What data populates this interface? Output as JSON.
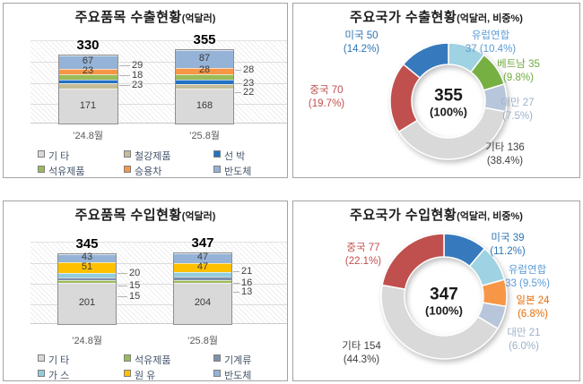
{
  "chart_data": [
    {
      "id": "export-items",
      "type": "bar",
      "stacked": true,
      "title": "주요품목 수출현황",
      "unit": "(억달러)",
      "categories": [
        "’24.8월",
        "’25.8월"
      ],
      "totals": [
        "330",
        "355"
      ],
      "ymax": 400,
      "grid": true,
      "legend_position": "bottom",
      "series": [
        {
          "name": "기 타",
          "color": "#d9d9d9",
          "values": [
            171,
            168
          ],
          "labels": "inside"
        },
        {
          "name": "철강제품",
          "color": "#c5bd97",
          "values": [
            23,
            22
          ],
          "labels": "callout"
        },
        {
          "name": "선 박",
          "color": "#2271c3",
          "values": [
            18,
            23
          ],
          "labels": "callout"
        },
        {
          "name": "석유제품",
          "color": "#9bbb59",
          "values": [
            29,
            28
          ],
          "labels": "callout"
        },
        {
          "name": "승용차",
          "color": "#f79646",
          "values": [
            23,
            28
          ],
          "labels": "inside"
        },
        {
          "name": "반도체",
          "color": "#95b3d7",
          "values": [
            67,
            87
          ],
          "labels": "inside"
        }
      ]
    },
    {
      "id": "export-countries",
      "type": "donut",
      "title": "주요국가 수출현황",
      "unit": "(억달러, 비중%)",
      "center": {
        "value": "355",
        "share": "(100%)"
      },
      "slices": [
        {
          "name": "유럽연합",
          "value": 37,
          "share": "10.4%",
          "color": "#9fd2e2",
          "label_color": "#5b9bd5",
          "label_lines": [
            "유럽연합",
            "37 (10.4%)"
          ]
        },
        {
          "name": "베트남",
          "value": 35,
          "share": "9.8%",
          "color": "#76b043",
          "label_color": "#6faa3d",
          "label_lines": [
            "베트남 35",
            "(9.8%)"
          ]
        },
        {
          "name": "대만",
          "value": 27,
          "share": "7.5%",
          "color": "#b7c6da",
          "label_color": "#9fb0c9",
          "label_lines": [
            "대만 27",
            "(7.5%)"
          ]
        },
        {
          "name": "기타",
          "value": 136,
          "share": "38.4%",
          "color": "#d9d9d9",
          "label_color": "#404040",
          "label_lines": [
            "기타 136",
            "(38.4%)"
          ]
        },
        {
          "name": "중국",
          "value": 70,
          "share": "19.7%",
          "color": "#c0504d",
          "label_color": "#c0504d",
          "label_lines": [
            "중국 70",
            "(19.7%)"
          ]
        },
        {
          "name": "미국",
          "value": 50,
          "share": "14.2%",
          "color": "#3779bd",
          "label_color": "#2e75b6",
          "label_lines": [
            "미국 50",
            "(14.2%)"
          ]
        }
      ]
    },
    {
      "id": "import-items",
      "type": "bar",
      "stacked": true,
      "title": "주요품목 수입현황",
      "unit": "(억달러)",
      "categories": [
        "’24.8월",
        "’25.8월"
      ],
      "totals": [
        "345",
        "347"
      ],
      "ymax": 400,
      "grid": true,
      "legend_position": "bottom",
      "series": [
        {
          "name": "기 타",
          "color": "#d9d9d9",
          "values": [
            201,
            204
          ],
          "labels": "inside"
        },
        {
          "name": "석유제품",
          "color": "#9bbb59",
          "values": [
            15,
            13
          ],
          "labels": "callout"
        },
        {
          "name": "기계류",
          "color": "#7d91ad",
          "values": [
            15,
            16
          ],
          "labels": "callout"
        },
        {
          "name": "가 스",
          "color": "#92cddc",
          "values": [
            20,
            21
          ],
          "labels": "callout"
        },
        {
          "name": "원 유",
          "color": "#ffc000",
          "values": [
            51,
            47
          ],
          "labels": "inside"
        },
        {
          "name": "반도체",
          "color": "#95b3d7",
          "values": [
            43,
            47
          ],
          "labels": "inside"
        }
      ]
    },
    {
      "id": "import-countries",
      "type": "donut",
      "title": "주요국가 수입현황",
      "unit": "(억달러, 비중%)",
      "center": {
        "value": "347",
        "share": "(100%)"
      },
      "slices": [
        {
          "name": "미국",
          "value": 39,
          "share": "11.2%",
          "color": "#3779bd",
          "label_color": "#2e75b6",
          "label_lines": [
            "미국 39",
            "(11.2%)"
          ]
        },
        {
          "name": "유럽연합",
          "value": 33,
          "share": "9.5%",
          "color": "#9fd2e2",
          "label_color": "#5b9bd5",
          "label_lines": [
            "유럽연합",
            "33 (9.5%)"
          ]
        },
        {
          "name": "일본",
          "value": 24,
          "share": "6.8%",
          "color": "#f79646",
          "label_color": "#e36c09",
          "label_lines": [
            "일본 24",
            "(6.8%)"
          ]
        },
        {
          "name": "대만",
          "value": 21,
          "share": "6.0%",
          "color": "#b7c6da",
          "label_color": "#9fb0c9",
          "label_lines": [
            "대만 21",
            "(6.0%)"
          ]
        },
        {
          "name": "기타",
          "value": 154,
          "share": "44.3%",
          "color": "#d9d9d9",
          "label_color": "#404040",
          "label_lines": [
            "기타 154",
            "(44.3%)"
          ]
        },
        {
          "name": "중국",
          "value": 77,
          "share": "22.1%",
          "color": "#c0504d",
          "label_color": "#c0504d",
          "label_lines": [
            "중국 77",
            "(22.1%)"
          ]
        }
      ]
    }
  ]
}
